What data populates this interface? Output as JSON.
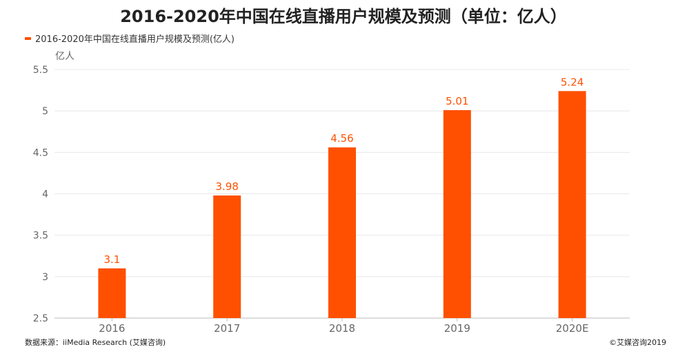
{
  "title": "2016-2020年中国在线直播用户规模及预测（单位：亿人）",
  "source": "数据来源：iiMedia Research (艾媒咨询)",
  "copyright": "©艾媒咨询2019",
  "colors": {
    "bar": "#fe5000",
    "axis_text": "#666666",
    "grid": "#e8e8e8"
  },
  "chart_data": {
    "type": "bar",
    "title": "2016-2020年中国在线直播用户规模及预测（单位：亿人）",
    "ylabel": "亿人",
    "xlabel": "",
    "categories": [
      "2016",
      "2017",
      "2018",
      "2019",
      "2020E"
    ],
    "series": [
      {
        "name": "2016-2020年中国在线直播用户规模及预测(亿人)",
        "values": [
          3.1,
          3.98,
          4.56,
          5.01,
          5.24
        ],
        "labels": [
          "3.1",
          "3.98",
          "4.56",
          "5.01",
          "5.24"
        ]
      }
    ],
    "ylim": [
      2.5,
      5.5
    ],
    "yticks": [
      "2.5",
      "3",
      "3.5",
      "4",
      "4.5",
      "5",
      "5.5"
    ],
    "grid": true,
    "legend_position": "top-left"
  }
}
